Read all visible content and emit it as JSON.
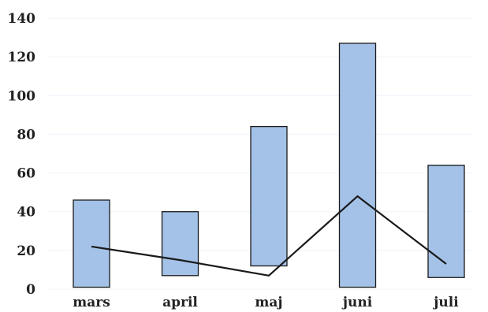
{
  "chart_data": {
    "type": "bar",
    "title": "",
    "xlabel": "",
    "ylabel": "",
    "categories": [
      "mars",
      "april",
      "maj",
      "juni",
      "juli"
    ],
    "ylim": [
      0,
      140
    ],
    "yticks": [
      0,
      20,
      40,
      60,
      80,
      100,
      120,
      140
    ],
    "grid": true,
    "legend": "none",
    "series": [
      {
        "type": "floating-bar",
        "ranges": [
          [
            1,
            46
          ],
          [
            7,
            40
          ],
          [
            12,
            84
          ],
          [
            1,
            127
          ],
          [
            6,
            64
          ]
        ],
        "color": "#a4c2e8"
      },
      {
        "type": "line",
        "values": [
          22,
          15,
          7,
          48,
          13
        ],
        "color": "#1a1a1a"
      }
    ]
  }
}
